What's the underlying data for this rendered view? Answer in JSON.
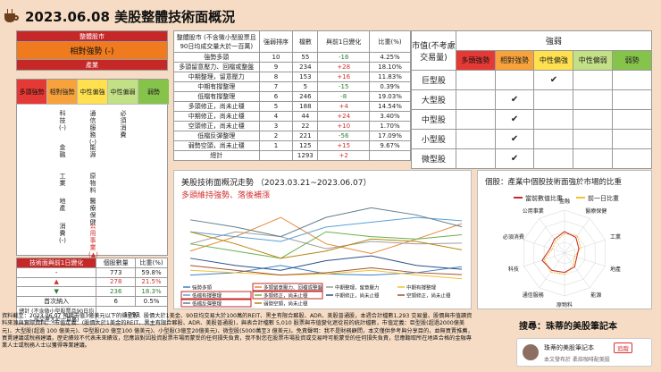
{
  "header": {
    "title": "2023.06.08 美股整體技術面概況"
  },
  "left": {
    "title": "整體股市",
    "status": "相對強勢 (-)",
    "industry_label": "產業",
    "columns": [
      "多頭強勢",
      "相對強勢",
      "中性偏強",
      "中性偏弱",
      "弱勢"
    ],
    "col2_items": [
      "科技(-)",
      "金融",
      "工業",
      "地產",
      "消費(-)"
    ],
    "col3_items": [
      "通信服務(-)",
      "能源",
      "原物料",
      "醫療保健",
      "公用事業(▲)"
    ],
    "col4_items": [
      "必須消費"
    ]
  },
  "mid": {
    "headers": [
      "整體股市 (不含微小型股票且90日均成交量大於一百萬)",
      "強弱排序",
      "檔數",
      "與前1日變化",
      "比重(%)"
    ],
    "rows": [
      [
        "強勢多頭",
        "10",
        "55",
        "-16",
        "4.25%"
      ],
      [
        "多頭留意壓力、回檔或整盤",
        "9",
        "234",
        "+28",
        "18.10%"
      ],
      [
        "中期整理，留意壓力",
        "8",
        "153",
        "+16",
        "11.83%"
      ],
      [
        "中期有撐整理",
        "7",
        "5",
        "-15",
        "0.39%"
      ],
      [
        "低檔有撐整理",
        "6",
        "246",
        "-8",
        "19.03%"
      ],
      [
        "多頭修正，尚未止穩",
        "5",
        "188",
        "+4",
        "14.54%"
      ],
      [
        "中期修正，尚未止穩",
        "4",
        "44",
        "+24",
        "3.40%"
      ],
      [
        "空頭修正，尚未止穩",
        "3",
        "22",
        "+10",
        "1.70%"
      ],
      [
        "低檔反彈整理",
        "2",
        "221",
        "-56",
        "17.09%"
      ],
      [
        "弱勢空頭，尚未止穩",
        "1",
        "125",
        "+15",
        "9.67%"
      ],
      [
        "總計",
        "",
        "1293",
        "+2",
        ""
      ]
    ]
  },
  "size": {
    "corner": "市值(不考慮交易量)",
    "strength": "強弱",
    "columns": [
      "多頭強勢",
      "相對強勢",
      "中性偏強",
      "中性偏弱",
      "弱勢"
    ],
    "rows": [
      {
        "label": "巨型股",
        "col": 2
      },
      {
        "label": "大型股",
        "col": 1
      },
      {
        "label": "中型股",
        "col": 1
      },
      {
        "label": "小型股",
        "col": 1
      },
      {
        "label": "微型股",
        "col": 1
      }
    ],
    "check": "✔"
  },
  "stat": {
    "title": "技術面與前1日變化",
    "headers": [
      "個股數量",
      "比重(%)"
    ],
    "rows": [
      [
        "-",
        "773",
        "59.8%"
      ],
      [
        "▲",
        "278",
        "21.5%"
      ],
      [
        "▼",
        "236",
        "18.3%"
      ],
      [
        "首次納入",
        "6",
        "0.5%"
      ],
      [
        "總計 (不含微小型股票且90日均成交量大於一百萬)",
        "1293",
        ""
      ]
    ]
  },
  "line_chart": {
    "title": "美股技術面概況走勢 （2023.03.21~2023.06.07）",
    "subtitle": "多頭維持強勢、落後補漲",
    "legend": [
      "強勢多頭",
      "多頭留意壓力、回檔或整盤",
      "中期整理，留意壓力",
      "中期有撐整理",
      "低檔有撐整理",
      "多頭修正，尚未止穩",
      "中期修正，尚未止穩",
      "空頭修正，尚未止穩",
      "低檔反彈整理",
      "弱勢空頭，尚未止穩"
    ],
    "colors": [
      "#3b82c4",
      "#e8893a",
      "#9e9e9e",
      "#f2c12e",
      "#5aa0d8",
      "#6ab04c",
      "#2c4f8a",
      "#a0522d",
      "#607d8b",
      "#b8860b"
    ]
  },
  "chart_data": {
    "type": "line",
    "title": "美股技術面概況走勢 （2023.03.21~2023.06.07）",
    "x": [
      "03.21",
      "04.03",
      "04.17",
      "05.01",
      "05.15",
      "05.29",
      "06.07"
    ],
    "series": [
      {
        "name": "強勢多頭",
        "values": [
          20,
          30,
          60,
          25,
          20,
          30,
          55
        ]
      },
      {
        "name": "多頭留意壓力、回檔或整盤",
        "values": [
          120,
          180,
          260,
          150,
          110,
          170,
          234
        ]
      },
      {
        "name": "中期整理，留意壓力",
        "values": [
          150,
          200,
          180,
          130,
          160,
          150,
          153
        ]
      },
      {
        "name": "中期有撐整理",
        "values": [
          40,
          30,
          20,
          25,
          40,
          20,
          5
        ]
      },
      {
        "name": "低檔有撐整理",
        "values": [
          200,
          180,
          160,
          220,
          240,
          260,
          246
        ]
      },
      {
        "name": "多頭修正，尚未止穩",
        "values": [
          150,
          120,
          90,
          200,
          180,
          170,
          188
        ]
      },
      {
        "name": "中期修正，尚未止穩",
        "values": [
          90,
          60,
          40,
          80,
          100,
          60,
          44
        ]
      },
      {
        "name": "空頭修正，尚未止穩",
        "values": [
          60,
          40,
          20,
          30,
          50,
          30,
          22
        ]
      },
      {
        "name": "低檔反彈整理",
        "values": [
          250,
          220,
          180,
          260,
          300,
          270,
          221
        ]
      },
      {
        "name": "弱勢空頭，尚未止穩",
        "values": [
          200,
          150,
          90,
          120,
          170,
          160,
          125
        ]
      }
    ]
  },
  "radar": {
    "title": "個股：產業中個股技術面強於市場的比重",
    "legend_now": "當前數值比重",
    "legend_prev": "前一日比重",
    "axes": [
      "金融",
      "醫療保健",
      "工業",
      "地產",
      "能源",
      "原物料",
      "通信服務",
      "科技",
      "必須消費",
      "公用事業"
    ],
    "now": [
      0.5,
      0.45,
      0.35,
      0.3,
      0.4,
      0.45,
      0.5,
      0.55,
      0.35,
      0.4
    ],
    "prev": [
      0.45,
      0.5,
      0.4,
      0.25,
      0.35,
      0.5,
      0.55,
      0.5,
      0.3,
      0.35
    ]
  },
  "disclaimer": "資料截至：2023.06.07 預期市值3億美元以下的微型股、股價大於1美金、90日均交易大於100萬的REIT、黑主有限合夥股、ADR、美股普通股，本週合計檔數1,293 交易量、股價與市值讀資料來源與實際資料。*市值定義：(股價大於1美金的REIT、黑主有限合夥股、ADR、美股普通股)，與表合計檔數 5,010 股票與市值變化遮從前的統計檔數，市值定義：巨型股(超過2000億美元)、大型股(超過 100 億美元)、中型股(20 億至100 億美元)、小型股(3億至20億美元)、微型股(5000萬至3 億美元)。免責聲明：我不是財務顧問，本文僅供參考與分享目的，並無買賣推薦，買賣建議或稅務建議，歷史績效不代表未來績效，您應該對因投資股票市場而蒙受的任何損失負責，我不對您在股票市場投資或交易時可能蒙受的任何損失負責，您應聽取所在地區合格的金融專業人士或稅務人士以獲得專業建議。",
  "search": "搜尋：珠蒂的美股筆記本",
  "post": {
    "name": "珠蒂的美股筆記本",
    "follow": "追蹤",
    "sub": "本文發布於 柔焙咖啡配美股"
  }
}
